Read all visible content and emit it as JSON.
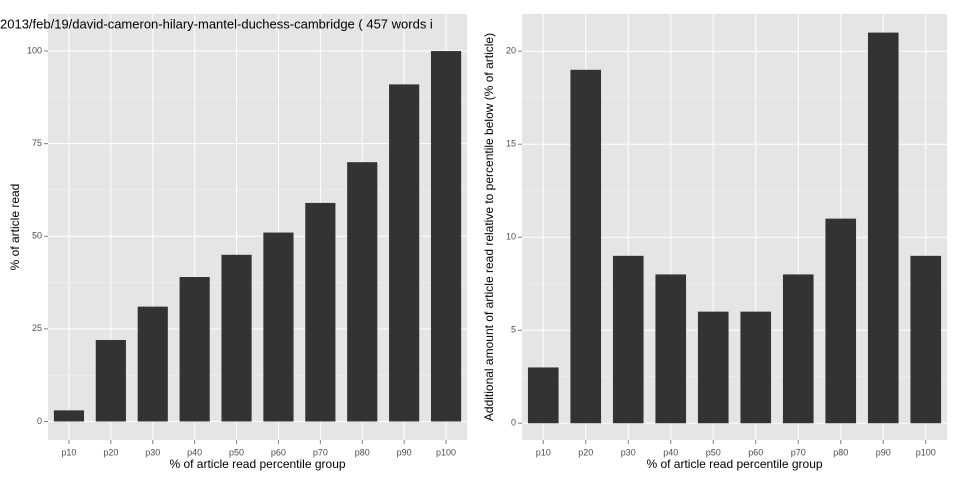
{
  "chart_data": [
    {
      "type": "bar",
      "title": "2013/feb/19/david-cameron-hilary-mantel-duchess-cambridge ( 457 words i",
      "xlabel": "% of article read percentile group",
      "ylabel": "% of article read",
      "categories": [
        "p10",
        "p20",
        "p30",
        "p40",
        "p50",
        "p60",
        "p70",
        "p80",
        "p90",
        "p100"
      ],
      "values": [
        3,
        22,
        31,
        39,
        45,
        51,
        59,
        70,
        91,
        100
      ],
      "color": "#333333",
      "ylim": [
        -5,
        110
      ],
      "yticks": [
        0,
        25,
        50,
        75,
        100
      ],
      "grid": true
    },
    {
      "type": "bar",
      "xlabel": "% of article read percentile group",
      "ylabel": "Additional amount of article read relative to percentile below (% of article)",
      "categories": [
        "p10",
        "p20",
        "p30",
        "p40",
        "p50",
        "p60",
        "p70",
        "p80",
        "p90",
        "p100"
      ],
      "values": [
        3,
        19,
        9,
        8,
        6,
        6,
        8,
        11,
        21,
        9
      ],
      "color": "#333333",
      "ylim": [
        -0.9,
        22
      ],
      "yticks": [
        0,
        5,
        10,
        15,
        20
      ],
      "grid": true
    }
  ]
}
